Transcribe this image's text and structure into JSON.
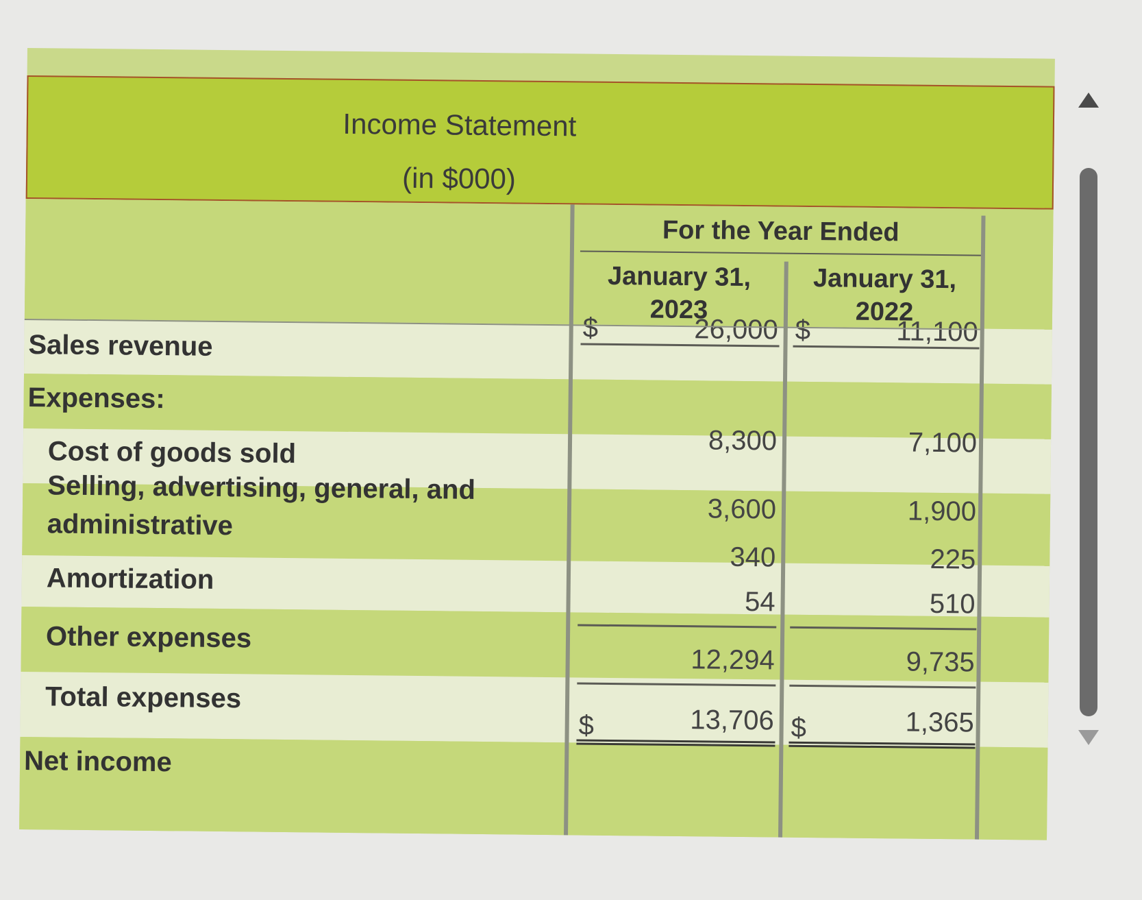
{
  "title": {
    "line1": "Income Statement",
    "line2": "(in $000)"
  },
  "header": {
    "group": "For the Year Ended",
    "col1": "January 31,\n2023",
    "col2": "January 31,\n2022"
  },
  "rows": [
    {
      "label": "Sales revenue",
      "v2023": "26,000",
      "v2022": "11,100",
      "dollar": "$"
    },
    {
      "label": "Expenses:"
    },
    {
      "label": "Cost of goods sold",
      "v2023": "8,300",
      "v2022": "7,100"
    },
    {
      "label": "Selling, advertising, general, and administrative",
      "v2023": "3,600",
      "v2022": "1,900"
    },
    {
      "label": "Amortization",
      "v2023": "340",
      "v2022": "225"
    },
    {
      "label": "Other expenses",
      "v2023": "54",
      "v2022": "510"
    },
    {
      "label": "Total expenses",
      "v2023": "12,294",
      "v2022": "9,735"
    },
    {
      "label": "Net income",
      "v2023": "13,706",
      "v2022": "1,365",
      "dollar": "$"
    }
  ],
  "colors": {
    "title_band": "#b5cc3a",
    "row_light": "#e6eccd",
    "row_dark": "#c9d98a",
    "border_accent": "#a5522a"
  }
}
